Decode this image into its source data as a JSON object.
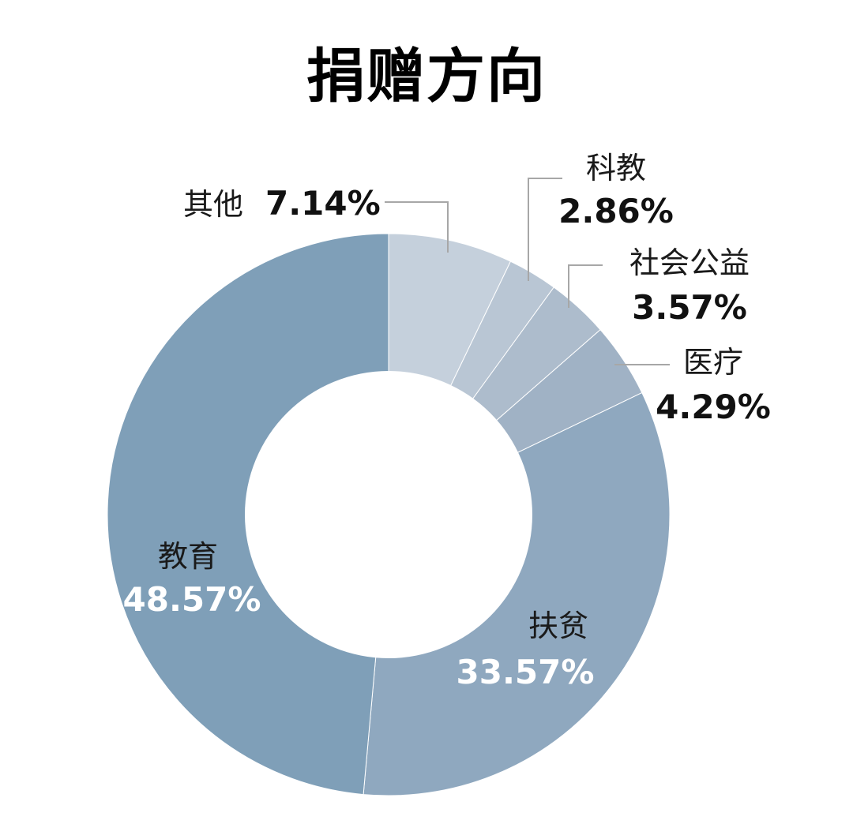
{
  "chart_data": {
    "type": "pie",
    "variant": "donut",
    "title": "捐赠方向",
    "categories": [
      "其他",
      "科教",
      "社会公益",
      "医疗",
      "扶贫",
      "教育"
    ],
    "values": [
      7.14,
      2.86,
      3.57,
      4.29,
      33.57,
      48.57
    ],
    "percent_labels": [
      "7.14%",
      "2.86%",
      "3.57%",
      "4.29%",
      "33.57%",
      "48.57%"
    ],
    "colors": [
      "#c5d0dc",
      "#b9c6d4",
      "#adbccc",
      "#a0b2c5",
      "#8fa8bf",
      "#7f9fb8"
    ],
    "unit": "%",
    "legend": "none",
    "grid": false
  }
}
